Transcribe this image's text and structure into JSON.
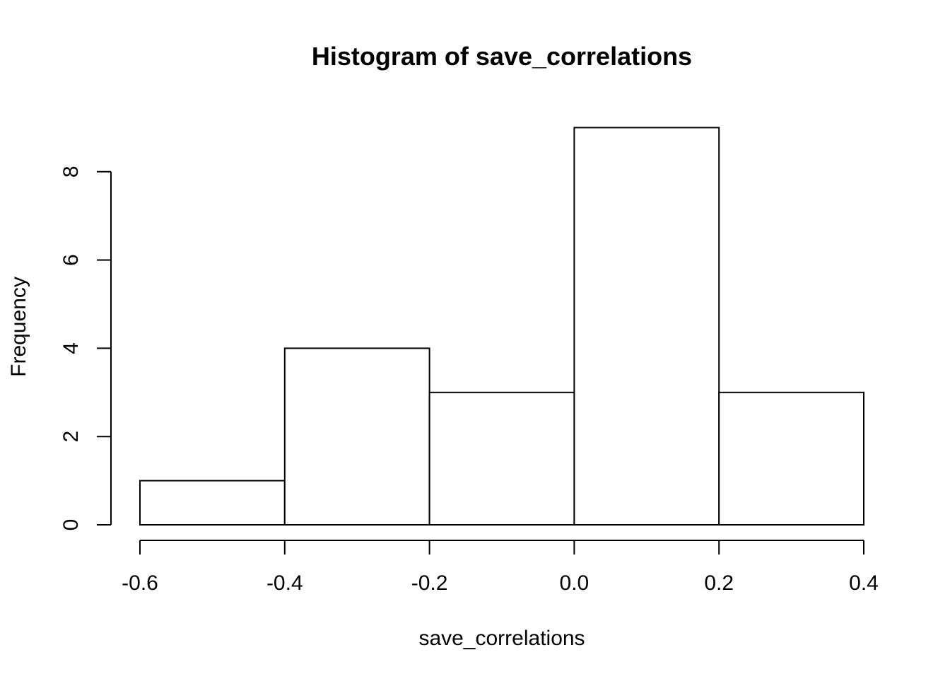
{
  "chart_data": {
    "type": "bar",
    "title": "Histogram of save_correlations",
    "xlabel": "save_correlations",
    "ylabel": "Frequency",
    "bins": [
      {
        "from": -0.6,
        "to": -0.4,
        "count": 1
      },
      {
        "from": -0.4,
        "to": -0.2,
        "count": 4
      },
      {
        "from": -0.2,
        "to": 0.0,
        "count": 3
      },
      {
        "from": 0.0,
        "to": 0.2,
        "count": 9
      },
      {
        "from": 0.2,
        "to": 0.4,
        "count": 3
      }
    ],
    "xlim": [
      -0.6,
      0.4
    ],
    "ylim": [
      0,
      9
    ],
    "x_ticks": [
      -0.6,
      -0.4,
      -0.2,
      0.0,
      0.2,
      0.4
    ],
    "x_tick_labels": [
      "-0.6",
      "-0.4",
      "-0.2",
      "0.0",
      "0.2",
      "0.4"
    ],
    "y_ticks": [
      0,
      2,
      4,
      6,
      8
    ],
    "y_tick_labels": [
      "0",
      "2",
      "4",
      "6",
      "8"
    ],
    "grid": false,
    "bar_fill": "#ffffff",
    "bar_stroke": "#000000"
  }
}
